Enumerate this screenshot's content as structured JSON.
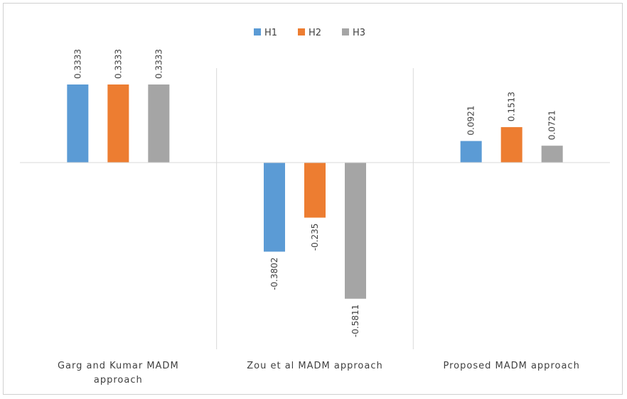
{
  "chart_data": {
    "type": "bar",
    "categories": [
      [
        "Garg and Kumar MADM",
        "approach"
      ],
      [
        "Zou et al MADM approach"
      ],
      [
        "Proposed MADM approach"
      ]
    ],
    "series": [
      {
        "name": "H1",
        "color": "#5b9bd5",
        "values": [
          0.3333,
          -0.3802,
          0.0921
        ],
        "labels": [
          "0.3333",
          "-0.3802",
          "0.0921"
        ]
      },
      {
        "name": "H2",
        "color": "#ed7d31",
        "values": [
          0.3333,
          -0.235,
          0.1513
        ],
        "labels": [
          "0.3333",
          "-0.235",
          "0.1513"
        ]
      },
      {
        "name": "H3",
        "color": "#a5a5a5",
        "values": [
          0.3333,
          -0.5811,
          0.0721
        ],
        "labels": [
          "0.3333",
          "-0.5811",
          "0.0721"
        ]
      }
    ],
    "ylim": [
      -0.8,
      0.4
    ],
    "legend_position": "top",
    "grid": false
  }
}
